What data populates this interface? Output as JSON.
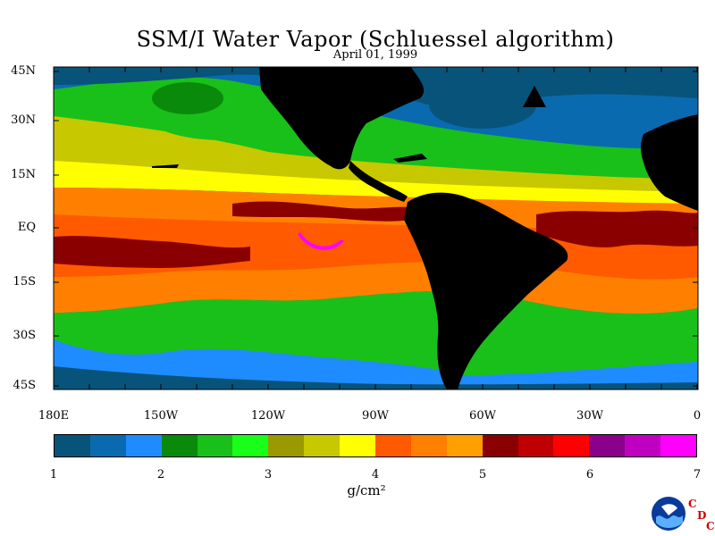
{
  "title": "SSM/I Water Vapor (Schluessel algorithm)",
  "date": "April 01, 1999",
  "lat_labels": [
    "45N",
    "30N",
    "15N",
    "EQ",
    "15S",
    "30S",
    "45S"
  ],
  "lon_labels": [
    "180E",
    "150W",
    "120W",
    "90W",
    "60W",
    "30W",
    "0"
  ],
  "colorbar": {
    "colors": [
      "#08537a",
      "#0a6ab0",
      "#1e8cff",
      "#0a8a0a",
      "#19c019",
      "#19ff19",
      "#9a9a00",
      "#c8c800",
      "#ffff00",
      "#ff5a00",
      "#ff8000",
      "#ffa000",
      "#8a0000",
      "#c00000",
      "#ff0000",
      "#8a008a",
      "#c000c0",
      "#ff00ff"
    ],
    "ticks": [
      "1",
      "2",
      "3",
      "4",
      "5",
      "6",
      "7"
    ],
    "unit": "g/cm²"
  },
  "logo": {
    "name": "NOAA",
    "side_text": [
      "C",
      "D",
      "C"
    ]
  }
}
